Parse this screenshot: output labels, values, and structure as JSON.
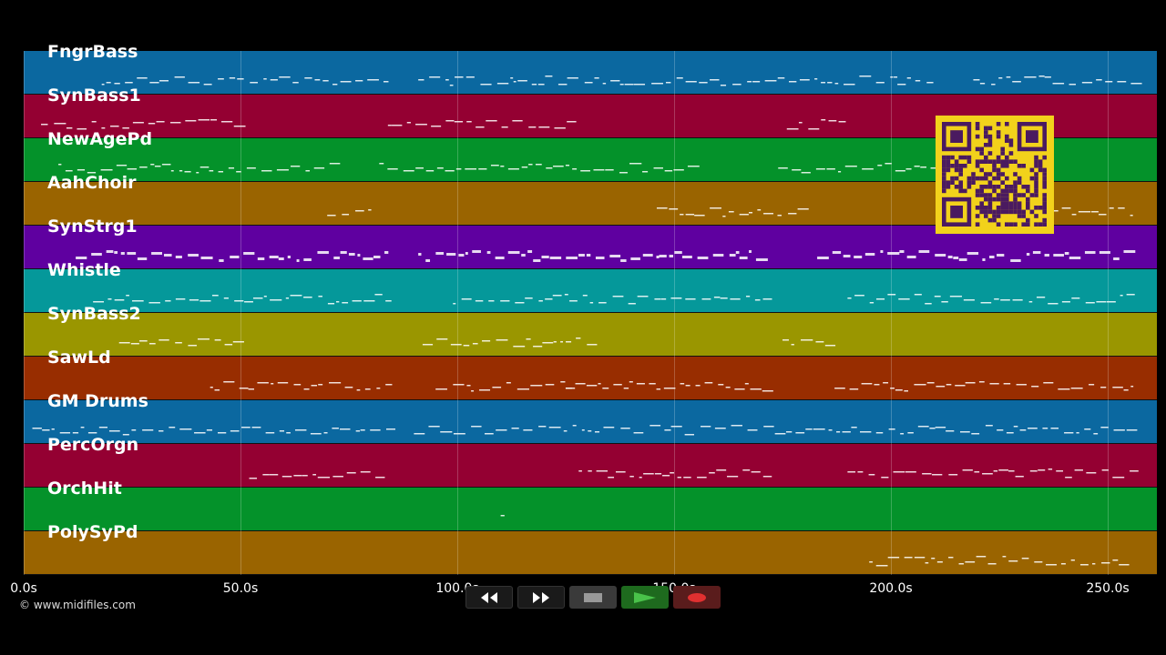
{
  "tracks": [
    {
      "name": "FngrBass",
      "color": "#0b68a0"
    },
    {
      "name": "SynBass1",
      "color": "#940032"
    },
    {
      "name": "NewAgePd",
      "color": "#04922a"
    },
    {
      "name": "AahChoir",
      "color": "#9a6400"
    },
    {
      "name": "SynStrg1",
      "color": "#5f00a0"
    },
    {
      "name": "Whistle",
      "color": "#05989a"
    },
    {
      "name": "SynBass2",
      "color": "#9a9600"
    },
    {
      "name": "SawLd",
      "color": "#982d00"
    },
    {
      "name": "GM Drums",
      "color": "#0b68a0"
    },
    {
      "name": "PercOrgn",
      "color": "#940032"
    },
    {
      "name": "OrchHit",
      "color": "#04922a"
    },
    {
      "name": "PolySyPd",
      "color": "#9a6400"
    }
  ],
  "timeline": {
    "ticks": [
      "0.0s",
      "50.0s",
      "100.0s",
      "150.0s",
      "200.0s",
      "250.0s"
    ]
  },
  "copyright": "© www.midifiles.com",
  "transport": {
    "buttons": [
      "rewind",
      "fast-forward",
      "stop",
      "play",
      "record"
    ]
  },
  "qr_color": "#f2d21b"
}
